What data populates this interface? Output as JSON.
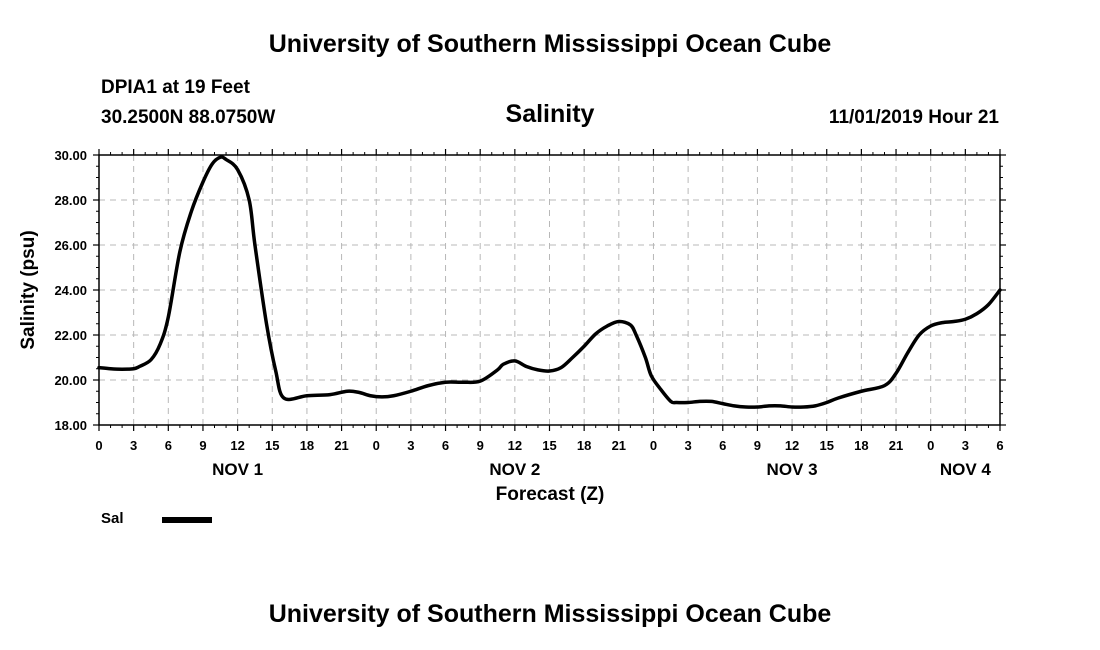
{
  "header": {
    "title": "University of Southern Mississippi Ocean Cube",
    "station": "DPIA1 at 19 Feet",
    "coordinates": "30.2500N 88.0750W",
    "variable": "Salinity",
    "datetime": "11/01/2019 Hour 21"
  },
  "footer": {
    "title": "University of Southern Mississippi Ocean Cube"
  },
  "legend": {
    "label": "Sal"
  },
  "chart_data": {
    "type": "line",
    "title": "Salinity",
    "xlabel": "Forecast (Z)",
    "ylabel": "Salinity (psu)",
    "ylim": [
      18.0,
      30.0
    ],
    "xlim": [
      0,
      78
    ],
    "x_unit": "hours from NOV 1 00Z",
    "y_ticks": [
      "18.00",
      "20.00",
      "22.00",
      "24.00",
      "26.00",
      "28.00",
      "30.00"
    ],
    "y_tick_values": [
      18,
      20,
      22,
      24,
      26,
      28,
      30
    ],
    "x_tick_hours": [
      0,
      3,
      6,
      9,
      12,
      15,
      18,
      21,
      24,
      27,
      30,
      33,
      36,
      39,
      42,
      45,
      48,
      51,
      54,
      57,
      60,
      63,
      66,
      69,
      72,
      75,
      78
    ],
    "x_tick_labels": [
      "0",
      "3",
      "6",
      "9",
      "12",
      "15",
      "18",
      "21",
      "0",
      "3",
      "6",
      "9",
      "12",
      "15",
      "18",
      "21",
      "0",
      "3",
      "6",
      "9",
      "12",
      "15",
      "18",
      "21",
      "0",
      "3",
      "6"
    ],
    "day_labels": [
      {
        "label": "NOV 1",
        "hour": 12
      },
      {
        "label": "NOV 2",
        "hour": 36
      },
      {
        "label": "NOV 3",
        "hour": 60
      },
      {
        "label": "NOV 4",
        "hour": 75
      }
    ],
    "grid": true,
    "series": [
      {
        "name": "Sal",
        "color": "#000000",
        "x": [
          0,
          1,
          2,
          3,
          3.5,
          4.5,
          5.3,
          6,
          7,
          8,
          9,
          9.8,
          10.5,
          11,
          12,
          13,
          13.5,
          14.5,
          15.3,
          16,
          18,
          20,
          21.5,
          22.5,
          23.5,
          24.5,
          25.5,
          27,
          28.5,
          30,
          31.5,
          33,
          34.5,
          35,
          36,
          37,
          38,
          39,
          40,
          41,
          42,
          43,
          44,
          45,
          46,
          46.5,
          47.3,
          47.8,
          48.6,
          49.5,
          50,
          51,
          52,
          53,
          54,
          55,
          56,
          57,
          58,
          59,
          60,
          61,
          62,
          63,
          64,
          66,
          68,
          69,
          70,
          71,
          72,
          73,
          74,
          75,
          76,
          77,
          78
        ],
        "values": [
          20.55,
          20.5,
          20.48,
          20.5,
          20.6,
          20.9,
          21.6,
          22.8,
          25.7,
          27.5,
          28.8,
          29.6,
          29.9,
          29.8,
          29.35,
          28.0,
          26.0,
          22.5,
          20.4,
          19.2,
          19.3,
          19.35,
          19.5,
          19.45,
          19.3,
          19.25,
          19.3,
          19.5,
          19.75,
          19.9,
          19.9,
          19.95,
          20.45,
          20.7,
          20.85,
          20.6,
          20.45,
          20.4,
          20.55,
          21.0,
          21.5,
          22.05,
          22.4,
          22.6,
          22.45,
          22.0,
          21.0,
          20.2,
          19.6,
          19.05,
          19.0,
          19.0,
          19.05,
          19.05,
          18.95,
          18.85,
          18.8,
          18.8,
          18.85,
          18.85,
          18.8,
          18.8,
          18.85,
          19.0,
          19.2,
          19.5,
          19.75,
          20.3,
          21.2,
          22.0,
          22.4,
          22.55,
          22.6,
          22.7,
          22.95,
          23.35,
          24.0
        ]
      }
    ]
  }
}
